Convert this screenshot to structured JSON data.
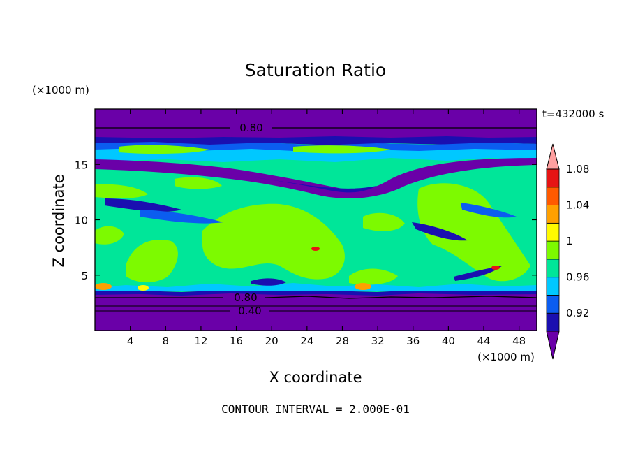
{
  "chart_data": {
    "type": "heatmap",
    "title": "Saturation Ratio",
    "xlabel": "X coordinate",
    "ylabel": "Z coordinate",
    "x_unit": "(×1000 m)",
    "y_unit": "(×1000 m)",
    "time_label": "t=432000 s",
    "footer": "CONTOUR INTERVAL = 2.000E-01",
    "xlim": [
      0,
      50
    ],
    "ylim": [
      0,
      20
    ],
    "xticks": [
      "4",
      "8",
      "12",
      "16",
      "20",
      "24",
      "28",
      "32",
      "36",
      "40",
      "44",
      "48"
    ],
    "yticks": [
      "5",
      "10",
      "15"
    ],
    "colorbar": {
      "labels": [
        "1.08",
        "1.04",
        "1",
        "0.96",
        "0.92"
      ],
      "levels": [
        0.9,
        0.92,
        0.94,
        0.96,
        0.98,
        1.0,
        1.02,
        1.04,
        1.06,
        1.08,
        1.1
      ],
      "colors": [
        "#6a00a8",
        "#1a0fb0",
        "#0b5df0",
        "#00c8ff",
        "#00e699",
        "#7dfa00",
        "#fffa00",
        "#ffa000",
        "#ff5a00",
        "#e61414",
        "#ffa0a0"
      ]
    },
    "contour_labels": [
      {
        "text": "0.80",
        "x": 17.5,
        "y": 18.5
      },
      {
        "text": "0.80",
        "x": 17.0,
        "y": 3.1
      },
      {
        "text": "0.40",
        "x": 17.5,
        "y": 1.8
      }
    ]
  },
  "colors": {
    "purple": "#6a00a8",
    "navy": "#1a0fb0",
    "blue": "#0b5df0",
    "cyan": "#00c8ff",
    "teal": "#00e699",
    "green": "#7dfa00",
    "yellow": "#fffa00",
    "orange": "#ffa000",
    "red": "#e61414",
    "pink": "#ffa0a0"
  }
}
